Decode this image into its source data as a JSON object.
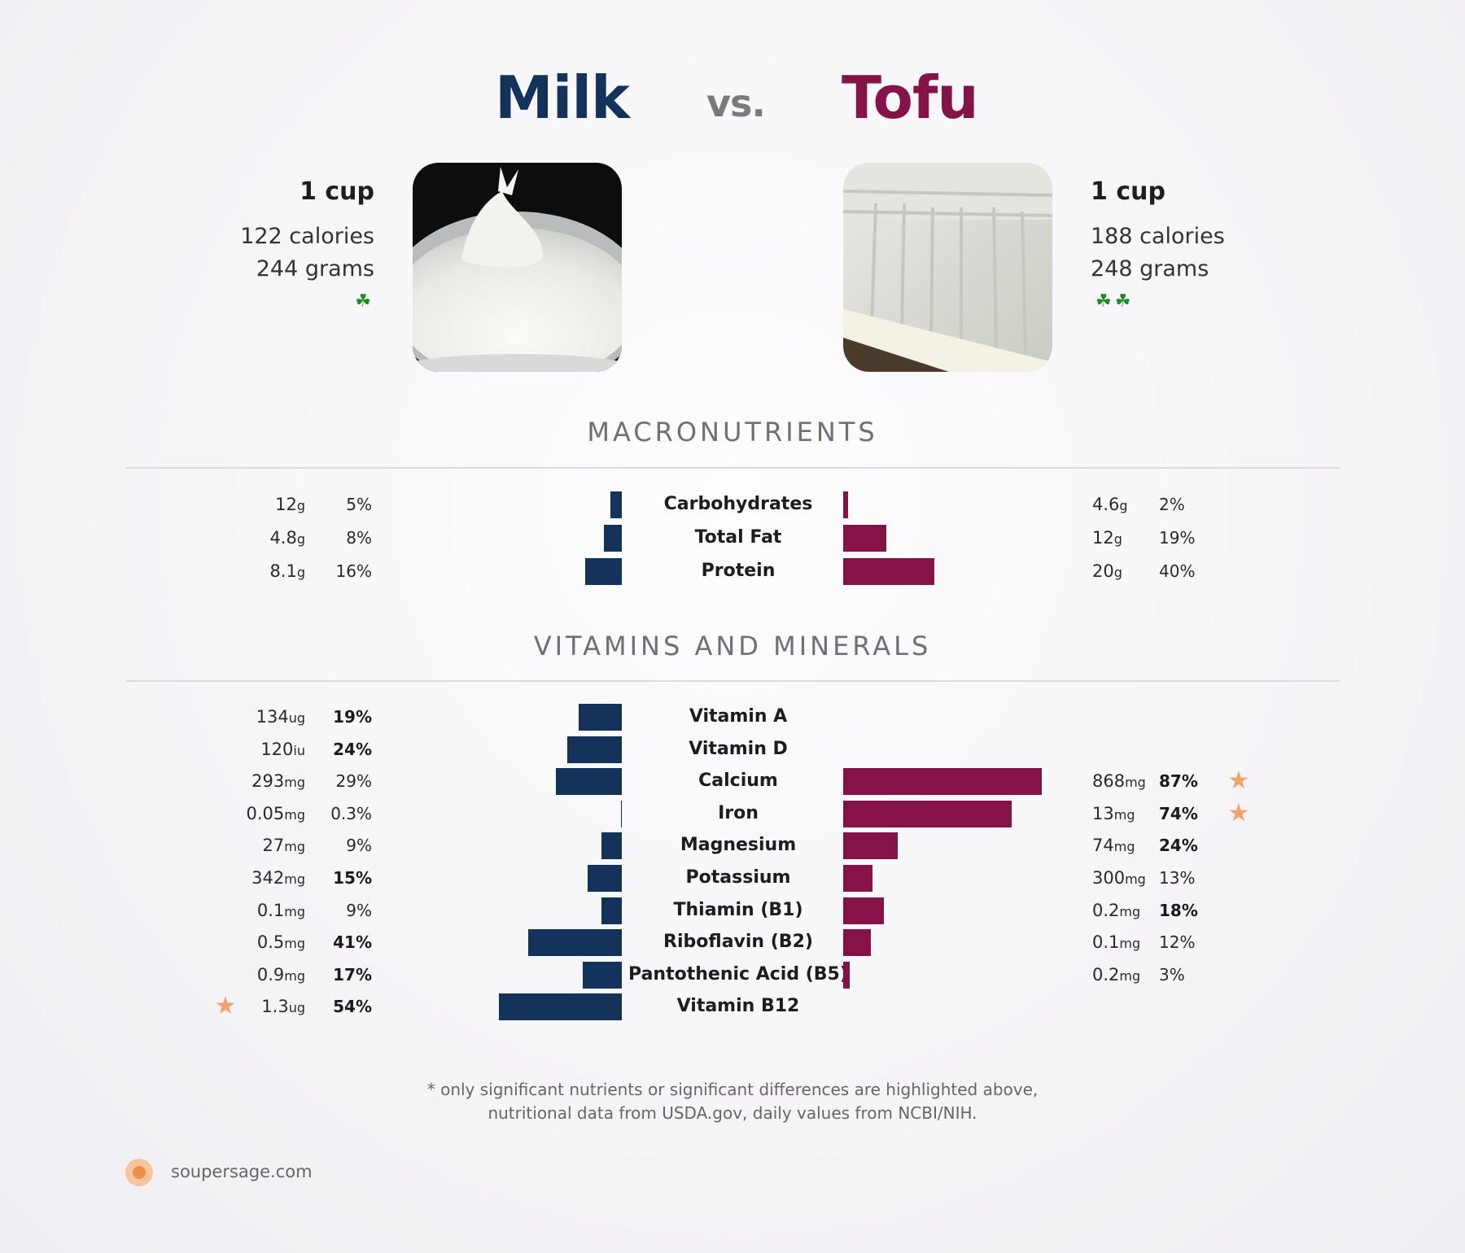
{
  "header": {
    "left_food": "Milk",
    "vs": "vs.",
    "right_food": "Tofu"
  },
  "milk": {
    "serving": "1 cup",
    "calories": "122 calories",
    "grams": "244 grams",
    "sprout_count": 1
  },
  "tofu": {
    "serving": "1 cup",
    "calories": "188 calories",
    "grams": "248 grams",
    "sprout_count": 2
  },
  "colors": {
    "milk": "#14335a",
    "tofu": "#861348",
    "star": "#f4a26b",
    "sprout": "#1f8a22"
  },
  "icons": {
    "sprout": "sprout-icon",
    "star": "star-icon",
    "brand": "soupersage-logo"
  },
  "chart_data": [
    {
      "type": "bar",
      "title": "MACRONUTRIENTS",
      "categories": [
        "Carbohydrates",
        "Total Fat",
        "Protein"
      ],
      "series": [
        {
          "name": "Milk",
          "amounts": [
            "12",
            "4.8",
            "8.1"
          ],
          "units": [
            "g",
            "g",
            "g"
          ],
          "values": [
            5,
            8,
            16
          ],
          "value_labels": [
            "5%",
            "8%",
            "16%"
          ],
          "bold": [
            false,
            false,
            false
          ]
        },
        {
          "name": "Tofu",
          "amounts": [
            "4.6",
            "12",
            "20"
          ],
          "units": [
            "g",
            "g",
            "g"
          ],
          "values": [
            2,
            19,
            40
          ],
          "value_labels": [
            "2%",
            "19%",
            "40%"
          ],
          "bold": [
            false,
            false,
            false
          ]
        }
      ]
    },
    {
      "type": "bar",
      "title": "VITAMINS AND MINERALS",
      "categories": [
        "Vitamin A",
        "Vitamin D",
        "Calcium",
        "Iron",
        "Magnesium",
        "Potassium",
        "Thiamin (B1)",
        "Riboflavin (B2)",
        "Pantothenic Acid (B5)",
        "Vitamin B12"
      ],
      "series": [
        {
          "name": "Milk",
          "amounts": [
            "134",
            "120",
            "293",
            "0.05",
            "27",
            "342",
            "0.1",
            "0.5",
            "0.9",
            "1.3"
          ],
          "units": [
            "ug",
            "iu",
            "mg",
            "mg",
            "mg",
            "mg",
            "mg",
            "mg",
            "mg",
            "ug"
          ],
          "values": [
            19,
            24,
            29,
            0.3,
            9,
            15,
            9,
            41,
            17,
            54
          ],
          "value_labels": [
            "19%",
            "24%",
            "29%",
            "0.3%",
            "9%",
            "15%",
            "9%",
            "41%",
            "17%",
            "54%"
          ],
          "bold": [
            true,
            true,
            false,
            false,
            false,
            true,
            false,
            true,
            true,
            true
          ],
          "starred": [
            false,
            false,
            false,
            false,
            false,
            false,
            false,
            false,
            false,
            true
          ]
        },
        {
          "name": "Tofu",
          "amounts": [
            null,
            null,
            "868",
            "13",
            "74",
            "300",
            "0.2",
            "0.1",
            "0.2",
            null
          ],
          "units": [
            null,
            null,
            "mg",
            "mg",
            "mg",
            "mg",
            "mg",
            "mg",
            "mg",
            null
          ],
          "values": [
            null,
            null,
            87,
            74,
            24,
            13,
            18,
            12,
            3,
            null
          ],
          "value_labels": [
            null,
            null,
            "87%",
            "74%",
            "24%",
            "13%",
            "18%",
            "12%",
            "3%",
            null
          ],
          "bold": [
            false,
            false,
            true,
            true,
            true,
            false,
            true,
            false,
            false,
            false
          ],
          "starred": [
            false,
            false,
            true,
            true,
            false,
            false,
            false,
            false,
            false,
            false
          ]
        }
      ]
    }
  ],
  "footnote": {
    "line1": "* only significant nutrients or significant differences are highlighted above,",
    "line2": "nutritional data from USDA.gov, daily values from NCBI/NIH."
  },
  "brand": {
    "site": "soupersage.com"
  }
}
